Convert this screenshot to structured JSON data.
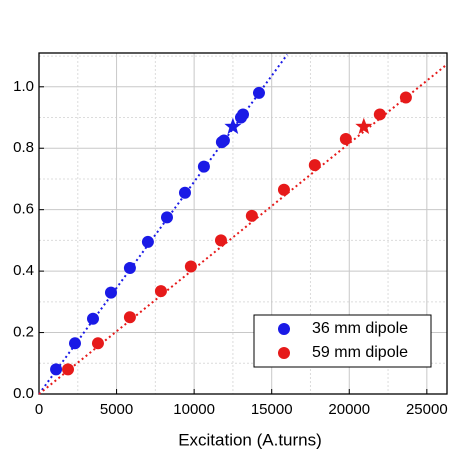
{
  "chart_data": {
    "type": "scatter",
    "x_label": "Excitation (A.turns)",
    "xlim": [
      0,
      26300
    ],
    "ylim": [
      0,
      1.11
    ],
    "xticks": [
      0,
      5000,
      10000,
      15000,
      20000,
      25000
    ],
    "yticks": [
      {
        "value": 0,
        "label": "0.0"
      },
      0.2,
      0.4,
      0.6,
      0.8,
      {
        "value": 1,
        "label": "1.0"
      }
    ],
    "minor_xticks": [
      2500,
      7500,
      12500,
      17500,
      22500
    ],
    "minor_yticks": [
      0.1,
      0.3,
      0.5,
      0.7,
      0.9,
      1.1
    ],
    "grid": true,
    "legend": "lower right",
    "series": [
      {
        "name": "36 mm dipole",
        "color": "#1a1ae6",
        "x": [
          1100,
          2320,
          3480,
          4640,
          5860,
          7020,
          8250,
          9410,
          10630,
          11790,
          11920,
          13020,
          13150,
          14180
        ],
        "values": [
          0.08,
          0.165,
          0.245,
          0.33,
          0.41,
          0.495,
          0.575,
          0.655,
          0.74,
          0.82,
          0.825,
          0.9,
          0.91,
          0.98
        ]
      },
      {
        "name": "59 mm dipole",
        "color": "#e61a1a",
        "x": [
          1870,
          3800,
          5860,
          7860,
          9790,
          11730,
          13720,
          15790,
          17780,
          19780,
          21970,
          23650
        ],
        "values": [
          0.08,
          0.165,
          0.25,
          0.335,
          0.415,
          0.5,
          0.58,
          0.665,
          0.745,
          0.83,
          0.91,
          0.965
        ]
      }
    ],
    "stars": [
      {
        "color": "#1a1ae6",
        "x": 12500,
        "y": 0.87
      },
      {
        "color": "#e61a1a",
        "x": 20940,
        "y": 0.87
      }
    ],
    "fit_lines": [
      {
        "color": "#1a1ae6",
        "x": [
          0,
          16000
        ],
        "values": [
          0,
          1.105
        ]
      },
      {
        "color": "#e61a1a",
        "x": [
          0,
          26300
        ],
        "values": [
          0,
          1.073
        ]
      }
    ]
  }
}
